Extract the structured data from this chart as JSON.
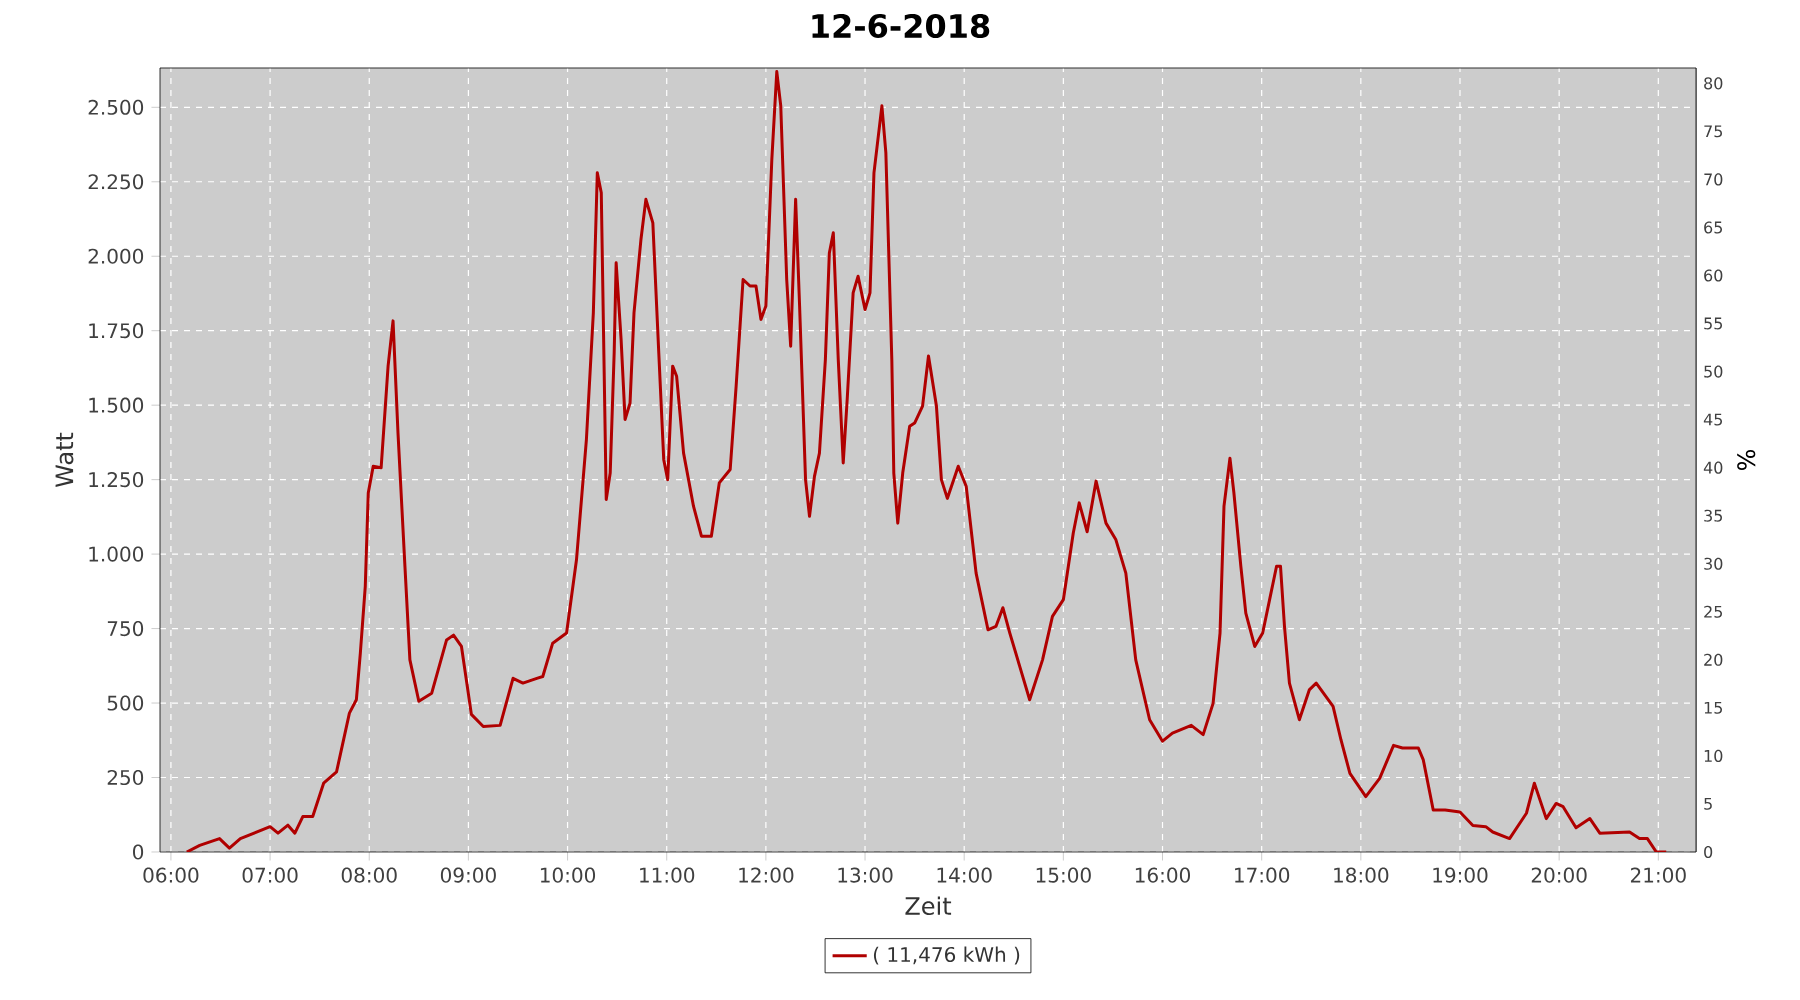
{
  "chart_data": {
    "type": "line",
    "title": "12-6-2018",
    "xlabel": "Zeit",
    "ylabel": "Watt",
    "y2label": "%",
    "xlim": [
      5.89,
      21.38
    ],
    "xticks": [
      {
        "value": 6,
        "label": "06:00"
      },
      {
        "value": 7,
        "label": "07:00"
      },
      {
        "value": 8,
        "label": "08:00"
      },
      {
        "value": 9,
        "label": "09:00"
      },
      {
        "value": 10,
        "label": "10:00"
      },
      {
        "value": 11,
        "label": "11:00"
      },
      {
        "value": 12,
        "label": "12:00"
      },
      {
        "value": 13,
        "label": "13:00"
      },
      {
        "value": 14,
        "label": "14:00"
      },
      {
        "value": 15,
        "label": "15:00"
      },
      {
        "value": 16,
        "label": "16:00"
      },
      {
        "value": 17,
        "label": "17:00"
      },
      {
        "value": 18,
        "label": "18:00"
      },
      {
        "value": 19,
        "label": "19:00"
      },
      {
        "value": 20,
        "label": "20:00"
      },
      {
        "value": 21,
        "label": "21:00"
      }
    ],
    "ylim": [
      0,
      2632
    ],
    "yticks": [
      0,
      250,
      500,
      750,
      {
        "value": 1000,
        "label": "1.000"
      },
      {
        "value": 1250,
        "label": "1.250"
      },
      {
        "value": 1500,
        "label": "1.500"
      },
      {
        "value": 1750,
        "label": "1.750"
      },
      {
        "value": 2000,
        "label": "2.000"
      },
      {
        "value": 2250,
        "label": "2.250"
      },
      {
        "value": 2500,
        "label": "2.500"
      }
    ],
    "y2lim": [
      0,
      81.6
    ],
    "y2ticks": [
      0,
      5,
      10,
      15,
      20,
      25,
      30,
      35,
      40,
      45,
      50,
      55,
      60,
      65,
      70,
      75,
      80
    ],
    "grid": true,
    "legend": "bottom",
    "marker": "none",
    "line_style": "solid",
    "series": [
      {
        "name": "( 11,476 kWh )",
        "color": "#b00000",
        "x": [
          6.16,
          6.29,
          6.49,
          6.59,
          6.7,
          7.0,
          7.08,
          7.18,
          7.25,
          7.33,
          7.43,
          7.54,
          7.67,
          7.7,
          7.8,
          7.87,
          7.91,
          7.96,
          7.99,
          8.04,
          8.12,
          8.19,
          8.24,
          8.29,
          8.36,
          8.41,
          8.5,
          8.63,
          8.78,
          8.85,
          8.93,
          9.03,
          9.15,
          9.32,
          9.45,
          9.55,
          9.69,
          9.75,
          9.85,
          9.99,
          10.09,
          10.19,
          10.26,
          10.3,
          10.34,
          10.39,
          10.43,
          10.47,
          10.49,
          10.54,
          10.58,
          10.63,
          10.67,
          10.74,
          10.79,
          10.86,
          10.92,
          10.97,
          11.01,
          11.06,
          11.1,
          11.17,
          11.27,
          11.35,
          11.45,
          11.53,
          11.64,
          11.7,
          11.77,
          11.84,
          11.9,
          11.95,
          12.0,
          12.06,
          12.11,
          12.15,
          12.21,
          12.25,
          12.3,
          12.34,
          12.4,
          12.44,
          12.49,
          12.54,
          12.6,
          12.64,
          12.68,
          12.73,
          12.78,
          12.82,
          12.88,
          12.93,
          13.0,
          13.05,
          13.09,
          13.17,
          13.21,
          13.27,
          13.29,
          13.33,
          13.38,
          13.45,
          13.5,
          13.58,
          13.64,
          13.72,
          13.77,
          13.83,
          13.94,
          14.02,
          14.12,
          14.24,
          14.32,
          14.39,
          14.46,
          14.56,
          14.66,
          14.79,
          14.89,
          15.0,
          15.1,
          15.16,
          15.24,
          15.33,
          15.43,
          15.53,
          15.63,
          15.73,
          15.87,
          16.0,
          16.1,
          16.29,
          16.41,
          16.51,
          16.58,
          16.62,
          16.68,
          16.72,
          16.79,
          16.84,
          16.93,
          17.01,
          17.08,
          17.15,
          17.19,
          17.23,
          17.28,
          17.38,
          17.48,
          17.55,
          17.72,
          17.8,
          17.89,
          18.05,
          18.19,
          18.33,
          18.42,
          18.58,
          18.63,
          18.73,
          18.85,
          19.0,
          19.13,
          19.26,
          19.33,
          19.5,
          19.67,
          19.75,
          19.87,
          19.97,
          20.04,
          20.17,
          20.31,
          20.41,
          20.71,
          20.81,
          20.89,
          20.98,
          21.08
        ],
        "values": [
          0,
          22,
          45,
          13,
          45,
          85,
          63,
          90,
          63,
          119,
          119,
          231,
          269,
          314,
          466,
          511,
          667,
          892,
          1205,
          1295,
          1290,
          1631,
          1783,
          1406,
          959,
          645,
          506,
          533,
          712,
          728,
          690,
          462,
          421,
          425,
          583,
          567,
          583,
          589,
          701,
          735,
          981,
          1384,
          1810,
          2280,
          2213,
          1183,
          1272,
          1675,
          1978,
          1720,
          1452,
          1507,
          1810,
          2056,
          2191,
          2112,
          1675,
          1317,
          1250,
          1631,
          1597,
          1339,
          1161,
          1060,
          1060,
          1239,
          1284,
          1564,
          1922,
          1900,
          1900,
          1788,
          1833,
          2325,
          2620,
          2505,
          1922,
          1698,
          2191,
          1833,
          1250,
          1127,
          1261,
          1339,
          1653,
          2011,
          2079,
          1653,
          1306,
          1519,
          1877,
          1933,
          1821,
          1877,
          2280,
          2505,
          2347,
          1653,
          1272,
          1104,
          1272,
          1429,
          1440,
          1497,
          1665,
          1497,
          1250,
          1187,
          1295,
          1228,
          936,
          746,
          757,
          820,
          735,
          623,
          511,
          645,
          791,
          847,
          1071,
          1172,
          1075,
          1245,
          1104,
          1048,
          936,
          645,
          444,
          372,
          399,
          425,
          394,
          499,
          735,
          1161,
          1322,
          1205,
          959,
          802,
          690,
          735,
          847,
          959,
          959,
          757,
          567,
          444,
          544,
          567,
          489,
          376,
          264,
          186,
          247,
          358,
          349,
          349,
          309,
          141,
          141,
          134,
          89,
          85,
          67,
          45,
          130,
          231,
          112,
          163,
          152,
          81,
          112,
          63,
          67,
          45,
          45,
          0,
          0
        ]
      }
    ]
  }
}
